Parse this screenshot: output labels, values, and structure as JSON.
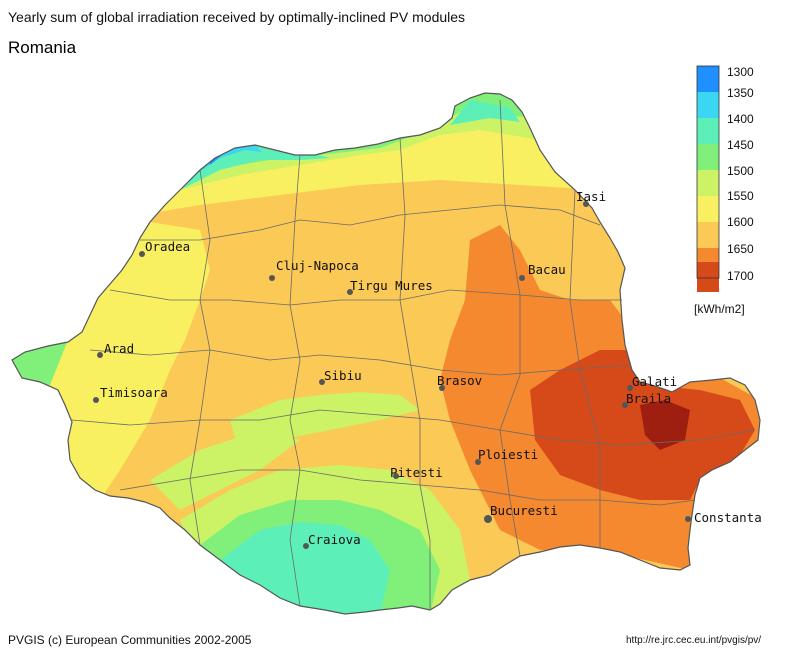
{
  "header": {
    "title": "Yearly sum of global irradiation received by optimally-inclined PV modules",
    "country": "Romania"
  },
  "legend": {
    "unit": "[kWh/m2]",
    "classes": [
      {
        "label": "1300",
        "color": "#1e90ff"
      },
      {
        "label": "1350",
        "color": "#3ad6f2"
      },
      {
        "label": "1400",
        "color": "#5cf0b8"
      },
      {
        "label": "1450",
        "color": "#80f07a"
      },
      {
        "label": "1500",
        "color": "#ccf266"
      },
      {
        "label": "1550",
        "color": "#f8f060"
      },
      {
        "label": "1600",
        "color": "#fbc955"
      },
      {
        "label": "1650",
        "color": "#f5892f"
      },
      {
        "label": "1700",
        "color": "#d64a1a"
      }
    ]
  },
  "cities": [
    {
      "name": "Iasi"
    },
    {
      "name": "Oradea"
    },
    {
      "name": "Cluj-Napoca"
    },
    {
      "name": "Bacau"
    },
    {
      "name": "Tirgu Mures"
    },
    {
      "name": "Arad"
    },
    {
      "name": "Sibiu"
    },
    {
      "name": "Brasov"
    },
    {
      "name": "Galati"
    },
    {
      "name": "Braila"
    },
    {
      "name": "Timisoara"
    },
    {
      "name": "Ploiesti"
    },
    {
      "name": "Pitesti"
    },
    {
      "name": "Bucuresti"
    },
    {
      "name": "Constanta"
    },
    {
      "name": "Craiova"
    }
  ],
  "footer": {
    "credit": "PVGIS (c) European Communities 2002-2005",
    "url": "http://re.jrc.cec.eu.int/pvgis/pv/"
  }
}
